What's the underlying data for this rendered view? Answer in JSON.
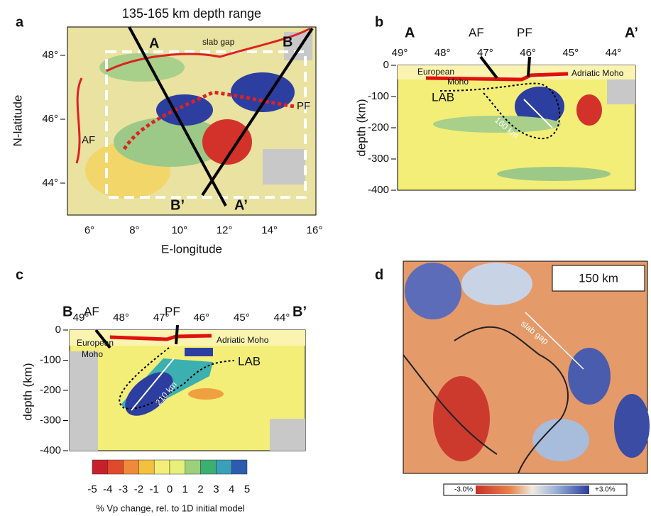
{
  "panels": [
    {
      "letter": "a",
      "title": "135-165 km depth range",
      "y_label": "N-latitude",
      "x_label": "E-longitude",
      "y_ticks": [
        "48°",
        "46°",
        "44°"
      ],
      "x_ticks": [
        "6°",
        "8°",
        "10°",
        "12°",
        "14°",
        "16°"
      ],
      "annotations": [
        "A",
        "B",
        "slab gap",
        "PF",
        "AF",
        "B’",
        "A’"
      ]
    },
    {
      "letter": "b",
      "x_ticks": [
        "49°",
        "48°",
        "47°",
        "46°",
        "45°",
        "44°"
      ],
      "y_ticks": [
        "0",
        "-100",
        "-200",
        "-300",
        "-400"
      ],
      "y_label": "depth (km)",
      "annotations": [
        "A",
        "A’",
        "AF",
        "PF",
        "European",
        "Moho",
        "Adriatic Moho",
        "LAB",
        "160 km"
      ]
    },
    {
      "letter": "c",
      "x_ticks": [
        "49°",
        "48°",
        "47°",
        "46°",
        "45°",
        "44°"
      ],
      "y_ticks": [
        "0",
        "-100",
        "-200",
        "-300",
        "-400"
      ],
      "y_label": "depth (km)",
      "annotations": [
        "B",
        "B’",
        "AF",
        "PF",
        "European",
        "Moho",
        "Adriatic Moho",
        "LAB",
        "210 km"
      ]
    },
    {
      "letter": "d",
      "box_label": "150 km",
      "annotations": [
        "slab gap"
      ],
      "colorbar": [
        "-3.0%",
        "+3.0%"
      ]
    }
  ],
  "colorbar": {
    "ticks": [
      "-5",
      "-4",
      "-3",
      "-2",
      "-1",
      "0",
      "1",
      "2",
      "3",
      "4",
      "5"
    ],
    "label": "% Vp change, rel. to 1D initial model"
  }
}
